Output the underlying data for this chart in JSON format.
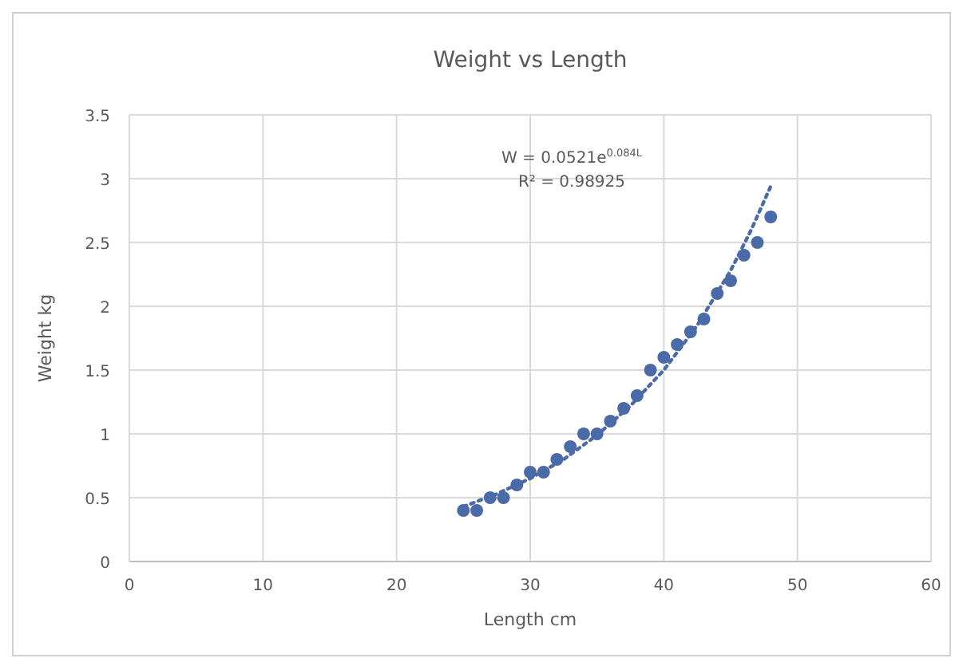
{
  "chart_data": {
    "type": "scatter",
    "title": "Weight vs Length",
    "xlabel": "Length cm",
    "ylabel": "Weight kg",
    "xlim": [
      0,
      60
    ],
    "xticks": [
      0,
      10,
      20,
      30,
      40,
      50,
      60
    ],
    "ylim": [
      0,
      3.5
    ],
    "yticks": [
      0,
      0.5,
      1,
      1.5,
      2,
      2.5,
      3,
      3.5
    ],
    "grid": true,
    "marker": "circle",
    "annotations": [
      "W = 0.0521e$^{0.084L}$",
      "R² = 0.98925"
    ],
    "series": [
      {
        "color": "#4a6aa8",
        "x": [
          25,
          26,
          27,
          28,
          29,
          30,
          31,
          32,
          33,
          34,
          35,
          36,
          37,
          38,
          39,
          40,
          41,
          42,
          43,
          44,
          45,
          46,
          47,
          48
        ],
        "values": [
          0.4,
          0.4,
          0.5,
          0.5,
          0.6,
          0.7,
          0.7,
          0.8,
          0.9,
          1.0,
          1.0,
          1.1,
          1.2,
          1.3,
          1.5,
          1.6,
          1.7,
          1.8,
          1.9,
          2.1,
          2.2,
          2.4,
          2.5,
          2.7
        ]
      },
      {
        "type": "line",
        "color": "#4a6aa8",
        "line_style": "dotted",
        "marker": "none",
        "x": [
          25,
          27.5,
          30,
          32.5,
          35,
          37.5,
          40,
          42.5,
          45,
          46.5,
          48
        ],
        "values": [
          0.43,
          0.53,
          0.65,
          0.8,
          0.99,
          1.22,
          1.5,
          1.85,
          2.28,
          2.59,
          2.94
        ]
      }
    ]
  }
}
